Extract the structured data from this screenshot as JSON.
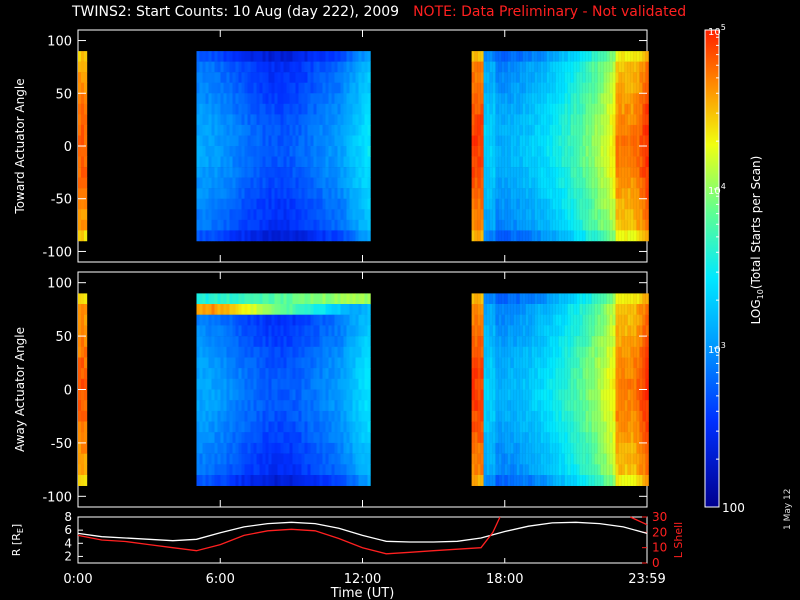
{
  "header": {
    "title": "TWINS2: Start Counts: 10 Aug (day 222), 2009",
    "warning": "NOTE: Data Preliminary - Not validated"
  },
  "footer": {
    "date_label": "1 May 12"
  },
  "colors": {
    "background": "#000000",
    "axis": "#ffffff",
    "warning": "#ff2020",
    "r_line": "#ffffff",
    "lshell_line": "#ff2020"
  },
  "chart_data": [
    {
      "type": "heatmap",
      "ylabel": "Toward Actuator Angle",
      "y_ticks": [
        "100",
        "50",
        "0",
        "-50",
        "-100"
      ],
      "ylim": [
        -110,
        110
      ],
      "xlim_hours": [
        0,
        24
      ],
      "x_ticks": [
        "0:00",
        "6:00",
        "12:00",
        "18:00",
        "23:59"
      ],
      "data_intervals_hours": [
        [
          0.0,
          0.3
        ],
        [
          5.0,
          12.3
        ],
        [
          16.6,
          24.0
        ]
      ],
      "angle_range": [
        -90,
        90
      ],
      "colorscale": "log10 counts, rainbow (blue low, red high)"
    },
    {
      "type": "heatmap",
      "ylabel": "Away Actuator Angle",
      "y_ticks": [
        "100",
        "50",
        "0",
        "-50",
        "-100"
      ],
      "ylim": [
        -110,
        110
      ],
      "xlim_hours": [
        0,
        24
      ],
      "x_ticks": [
        "0:00",
        "6:00",
        "12:00",
        "18:00",
        "23:59"
      ],
      "data_intervals_hours": [
        [
          0.0,
          0.3
        ],
        [
          5.0,
          12.3
        ],
        [
          16.6,
          24.0
        ]
      ],
      "angle_range": [
        -90,
        90
      ],
      "colorscale": "log10 counts, rainbow (blue low, red high)"
    },
    {
      "type": "line",
      "xlabel": "Time (UT)",
      "x_ticks": [
        "0:00",
        "6:00",
        "12:00",
        "18:00",
        "23:59"
      ],
      "left_axis": {
        "label": "R [R",
        "label_sub": "E",
        "label_end": "]",
        "ticks": [
          "8",
          "6",
          "4",
          "2"
        ],
        "ylim": [
          1,
          8
        ]
      },
      "right_axis": {
        "label": "L Shell",
        "ticks": [
          "30",
          "20",
          "10",
          "0"
        ],
        "ylim": [
          0,
          30
        ]
      },
      "series": [
        {
          "name": "R",
          "axis": "left",
          "x": [
            0,
            1,
            2,
            3,
            4,
            5,
            6,
            7,
            8,
            9,
            10,
            11,
            12,
            13,
            14,
            15,
            16,
            17,
            18,
            19,
            20,
            21,
            22,
            23,
            24
          ],
          "values": [
            5.5,
            5.0,
            4.8,
            4.6,
            4.4,
            4.6,
            5.6,
            6.5,
            7.0,
            7.2,
            7.0,
            6.3,
            5.2,
            4.3,
            4.2,
            4.2,
            4.3,
            4.8,
            5.8,
            6.6,
            7.1,
            7.2,
            7.0,
            6.5,
            5.5
          ]
        },
        {
          "name": "L Shell",
          "axis": "right",
          "x": [
            0,
            1,
            2,
            3,
            4,
            5,
            6,
            7,
            8,
            9,
            10,
            11,
            12,
            13,
            14,
            15,
            16,
            17,
            17.5,
            17.8
          ],
          "values": [
            18,
            15,
            14,
            12,
            10,
            8,
            12,
            18,
            21,
            22,
            21,
            16,
            10,
            6,
            7,
            8,
            9,
            10,
            20,
            30
          ]
        },
        {
          "x": [
            23.3,
            24
          ],
          "values": [
            30,
            25
          ]
        }
      ]
    }
  ],
  "colorbar": {
    "label_pre": "LOG",
    "label_sub": "10",
    "label_post": "(Total Starts per Scan)",
    "tick_top_base": "10",
    "tick_top_exp": "5",
    "tick_mid_base": "10",
    "tick_mid_exp": "4",
    "tick_low_base": "10",
    "tick_low_exp": "3",
    "tick_bottom": "100"
  }
}
